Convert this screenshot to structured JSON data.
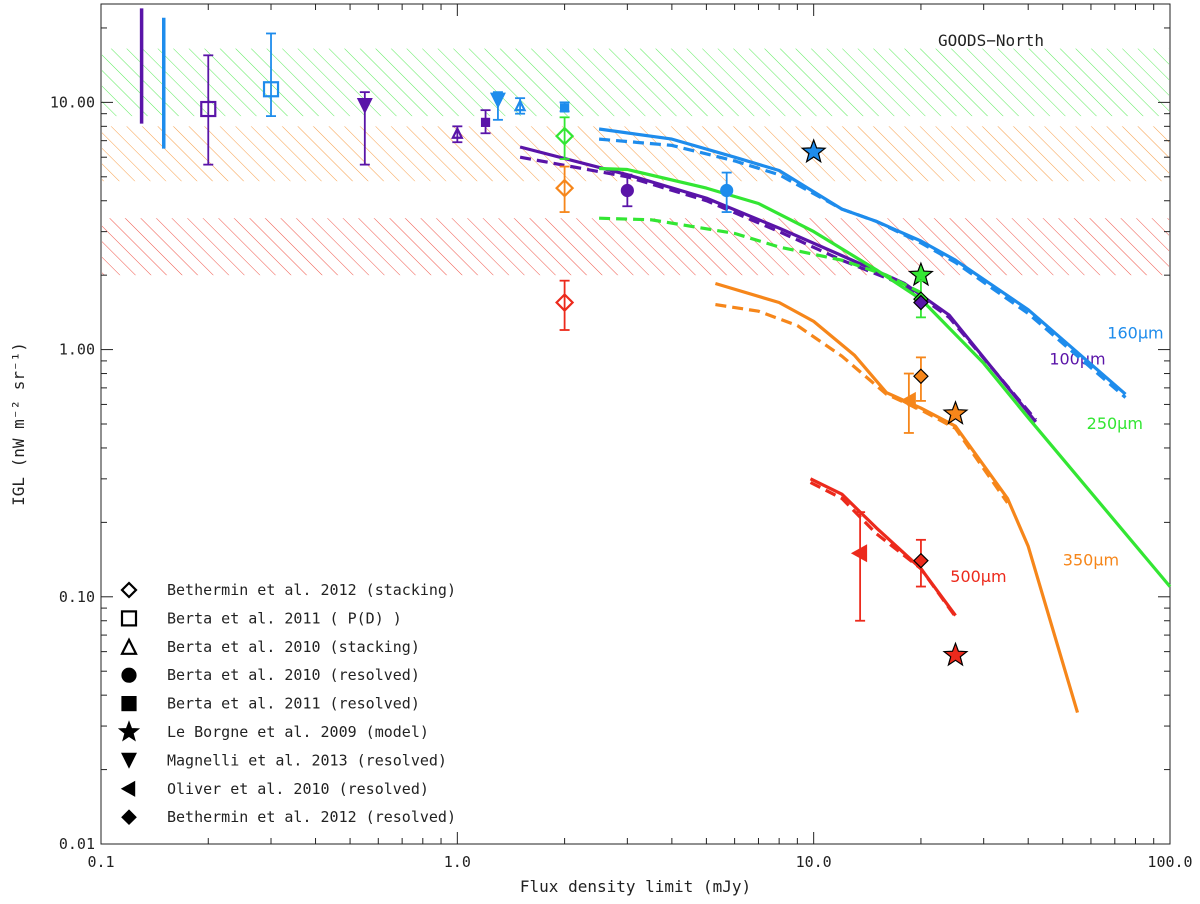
{
  "chart_data": {
    "type": "scatter",
    "title": "GOODS−North",
    "xlabel": "Flux density limit (mJy)",
    "ylabel": "IGL (nW m⁻² sr⁻¹)",
    "xscale": "log",
    "yscale": "log",
    "xlim": [
      0.1,
      100.0
    ],
    "ylim": [
      0.01,
      25
    ],
    "xticks": [
      "0.1",
      "1.0",
      "10.0",
      "100.0"
    ],
    "yticks": [
      "0.01",
      "0.10",
      "1.00",
      "10.00"
    ],
    "legend_position": "bottom-left",
    "colors": {
      "100um": "#5a14a8",
      "160um": "#1e8cec",
      "250um": "#33e633",
      "350um": "#f6861a",
      "500um": "#ec2a1c",
      "black": "#000000"
    },
    "bands": [
      {
        "name": "250um",
        "ymin": 8.8,
        "ymax": 16.5,
        "color": "#33e633"
      },
      {
        "name": "350um",
        "ymin": 4.8,
        "ymax": 8.0,
        "color": "#f6861a"
      },
      {
        "name": "500um",
        "ymin": 2.0,
        "ymax": 3.4,
        "color": "#ec2a1c"
      }
    ],
    "bars": [
      {
        "x": 0.13,
        "ylo": 8.2,
        "yhi": 24.0,
        "color": "100um"
      },
      {
        "x": 0.15,
        "ylo": 6.5,
        "yhi": 22.0,
        "color": "160um"
      }
    ],
    "curves": [
      {
        "name": "100μm",
        "color": "100um",
        "dashed": false,
        "points": [
          [
            1.5,
            6.6
          ],
          [
            3,
            5.1
          ],
          [
            5,
            4.1
          ],
          [
            8,
            3.1
          ],
          [
            12,
            2.4
          ],
          [
            18,
            1.85
          ],
          [
            24,
            1.38
          ],
          [
            42,
            0.51
          ]
        ],
        "label_pos": [
          55,
          0.91
        ]
      },
      {
        "name": "",
        "color": "100um",
        "dashed": true,
        "points": [
          [
            1.5,
            6.0
          ],
          [
            3,
            5.0
          ],
          [
            5,
            4.0
          ],
          [
            8,
            3.0
          ],
          [
            12,
            2.3
          ],
          [
            18,
            1.82
          ],
          [
            24,
            1.35
          ],
          [
            42,
            0.52
          ]
        ]
      },
      {
        "name": "160μm",
        "color": "160um",
        "dashed": false,
        "points": [
          [
            2.5,
            7.8
          ],
          [
            4,
            7.1
          ],
          [
            6,
            6.0
          ],
          [
            8,
            5.3
          ],
          [
            12,
            3.7
          ],
          [
            15,
            3.3
          ],
          [
            20,
            2.75
          ],
          [
            25,
            2.3
          ],
          [
            40,
            1.45
          ],
          [
            75,
            0.66
          ]
        ],
        "label_pos": [
          80,
          1.16
        ]
      },
      {
        "name": "",
        "color": "160um",
        "dashed": true,
        "points": [
          [
            2.5,
            7.1
          ],
          [
            4,
            6.7
          ],
          [
            6,
            5.8
          ],
          [
            8,
            5.1
          ],
          [
            12,
            3.7
          ],
          [
            15,
            3.3
          ],
          [
            20,
            2.7
          ],
          [
            25,
            2.25
          ],
          [
            40,
            1.4
          ],
          [
            75,
            0.64
          ]
        ]
      },
      {
        "name": "250μm",
        "color": "250um",
        "dashed": false,
        "points": [
          [
            2.5,
            5.4
          ],
          [
            3,
            5.35
          ],
          [
            5,
            4.5
          ],
          [
            7,
            3.9
          ],
          [
            10,
            3.0
          ],
          [
            15,
            2.1
          ],
          [
            20,
            1.6
          ],
          [
            30,
            0.88
          ],
          [
            40,
            0.53
          ],
          [
            100,
            0.11
          ]
        ],
        "label_pos": [
          70,
          0.5
        ]
      },
      {
        "name": "",
        "color": "250um",
        "dashed": true,
        "points": [
          [
            2.5,
            3.4
          ],
          [
            3.5,
            3.35
          ],
          [
            6,
            2.95
          ],
          [
            8,
            2.6
          ],
          [
            12,
            2.3
          ],
          [
            16,
            2.0
          ],
          [
            20,
            1.7
          ]
        ]
      },
      {
        "name": "350μm",
        "color": "350um",
        "dashed": false,
        "points": [
          [
            5.3,
            1.85
          ],
          [
            8,
            1.55
          ],
          [
            10,
            1.3
          ],
          [
            13,
            0.95
          ],
          [
            16,
            0.67
          ],
          [
            20,
            0.58
          ],
          [
            25,
            0.49
          ],
          [
            35,
            0.25
          ],
          [
            40,
            0.16
          ],
          [
            55,
            0.034
          ]
        ],
        "label_pos": [
          60,
          0.14
        ]
      },
      {
        "name": "",
        "color": "350um",
        "dashed": true,
        "points": [
          [
            5.3,
            1.52
          ],
          [
            7,
            1.43
          ],
          [
            9,
            1.25
          ],
          [
            12,
            0.94
          ],
          [
            16,
            0.66
          ],
          [
            20,
            0.57
          ],
          [
            25,
            0.48
          ],
          [
            35,
            0.24
          ]
        ]
      },
      {
        "name": "500μm",
        "color": "500um",
        "dashed": false,
        "points": [
          [
            9.8,
            0.3
          ],
          [
            12,
            0.26
          ],
          [
            15,
            0.19
          ],
          [
            20,
            0.13
          ],
          [
            25,
            0.084
          ]
        ],
        "label_pos": [
          29,
          0.12
        ]
      },
      {
        "name": "",
        "color": "500um",
        "dashed": true,
        "points": [
          [
            9.8,
            0.29
          ],
          [
            12,
            0.25
          ],
          [
            15,
            0.18
          ],
          [
            20,
            0.13
          ],
          [
            25,
            0.083
          ]
        ]
      }
    ],
    "points": [
      {
        "marker": "square",
        "fill": false,
        "color": "100um",
        "x": 0.2,
        "y": 9.4,
        "ylo": 5.6,
        "yhi": 15.5,
        "size": 14
      },
      {
        "marker": "square",
        "fill": false,
        "color": "160um",
        "x": 0.3,
        "y": 11.3,
        "ylo": 8.8,
        "yhi": 19.0,
        "size": 14
      },
      {
        "marker": "tri_down",
        "fill": true,
        "color": "100um",
        "x": 0.55,
        "y": 9.7,
        "ylo": 5.6,
        "yhi": 11.0,
        "size": 14
      },
      {
        "marker": "tri_up",
        "fill": false,
        "color": "100um",
        "x": 1.0,
        "y": 7.5,
        "ylo": 6.9,
        "yhi": 8.0,
        "size": 9
      },
      {
        "marker": "square",
        "fill": true,
        "color": "100um",
        "x": 1.2,
        "y": 8.3,
        "ylo": 7.5,
        "yhi": 9.3,
        "size": 8
      },
      {
        "marker": "tri_down",
        "fill": true,
        "color": "160um",
        "x": 1.3,
        "y": 10.2,
        "ylo": 8.5,
        "yhi": 11.0,
        "size": 14
      },
      {
        "marker": "tri_up",
        "fill": false,
        "color": "160um",
        "x": 1.5,
        "y": 9.7,
        "ylo": 9.0,
        "yhi": 10.4,
        "size": 9
      },
      {
        "marker": "square",
        "fill": true,
        "color": "160um",
        "x": 2.0,
        "y": 9.5,
        "ylo": 9.2,
        "yhi": 10.0,
        "size": 8
      },
      {
        "marker": "diamond",
        "fill": false,
        "color": "250um",
        "x": 2.0,
        "y": 7.3,
        "ylo": 5.9,
        "yhi": 8.7,
        "size": 16
      },
      {
        "marker": "diamond",
        "fill": false,
        "color": "350um",
        "x": 2.0,
        "y": 4.5,
        "ylo": 3.6,
        "yhi": 5.5,
        "size": 16
      },
      {
        "marker": "diamond",
        "fill": false,
        "color": "500um",
        "x": 2.0,
        "y": 1.55,
        "ylo": 1.2,
        "yhi": 1.9,
        "size": 16
      },
      {
        "marker": "circle",
        "fill": true,
        "color": "100um",
        "x": 3.0,
        "y": 4.4,
        "ylo": 3.8,
        "yhi": 5.1,
        "size": 12
      },
      {
        "marker": "circle",
        "fill": true,
        "color": "160um",
        "x": 5.7,
        "y": 4.4,
        "ylo": 3.6,
        "yhi": 5.2,
        "size": 12
      },
      {
        "marker": "star",
        "fill": true,
        "color": "160um",
        "x": 10.0,
        "y": 6.3,
        "size": 24
      },
      {
        "marker": "star",
        "fill": true,
        "color": "250um",
        "x": 20.0,
        "y": 2.0,
        "size": 24
      },
      {
        "marker": "diamond",
        "fill": true,
        "color": "250um",
        "x": 20.0,
        "y": 1.6,
        "ylo": 1.35,
        "yhi": 1.9,
        "size": 14
      },
      {
        "marker": "diamond",
        "fill": true,
        "color": "100um",
        "x": 20.0,
        "y": 1.55,
        "size": 14
      },
      {
        "marker": "tri_left",
        "fill": true,
        "color": "350um",
        "x": 18.5,
        "y": 0.62,
        "ylo": 0.46,
        "yhi": 0.8,
        "size": 16
      },
      {
        "marker": "diamond",
        "fill": true,
        "color": "350um",
        "x": 20.0,
        "y": 0.78,
        "ylo": 0.62,
        "yhi": 0.93,
        "size": 14
      },
      {
        "marker": "star",
        "fill": true,
        "color": "350um",
        "x": 25.0,
        "y": 0.55,
        "size": 24
      },
      {
        "marker": "tri_left",
        "fill": true,
        "color": "500um",
        "x": 13.5,
        "y": 0.15,
        "ylo": 0.08,
        "yhi": 0.22,
        "size": 16
      },
      {
        "marker": "diamond",
        "fill": true,
        "color": "500um",
        "x": 20.0,
        "y": 0.14,
        "ylo": 0.11,
        "yhi": 0.17,
        "size": 14
      },
      {
        "marker": "star",
        "fill": true,
        "color": "500um",
        "x": 25.0,
        "y": 0.058,
        "size": 24
      }
    ],
    "legend": [
      {
        "marker": "diamond",
        "fill": false,
        "label": "Bethermin et al. 2012 (stacking)"
      },
      {
        "marker": "square",
        "fill": false,
        "label": "Berta et al. 2011 ( P(D) )"
      },
      {
        "marker": "tri_up",
        "fill": false,
        "label": "Berta et al. 2010 (stacking)"
      },
      {
        "marker": "circle",
        "fill": true,
        "label": "Berta et al. 2010 (resolved)"
      },
      {
        "marker": "square",
        "fill": true,
        "label": "Berta et al. 2011 (resolved)"
      },
      {
        "marker": "star",
        "fill": true,
        "label": "Le Borgne et al. 2009 (model)"
      },
      {
        "marker": "tri_down",
        "fill": true,
        "label": "Magnelli et al. 2013 (resolved)"
      },
      {
        "marker": "tri_left",
        "fill": true,
        "label": "Oliver et al. 2010 (resolved)"
      },
      {
        "marker": "diamond",
        "fill": true,
        "label": "Bethermin et al. 2012 (resolved)"
      }
    ]
  }
}
